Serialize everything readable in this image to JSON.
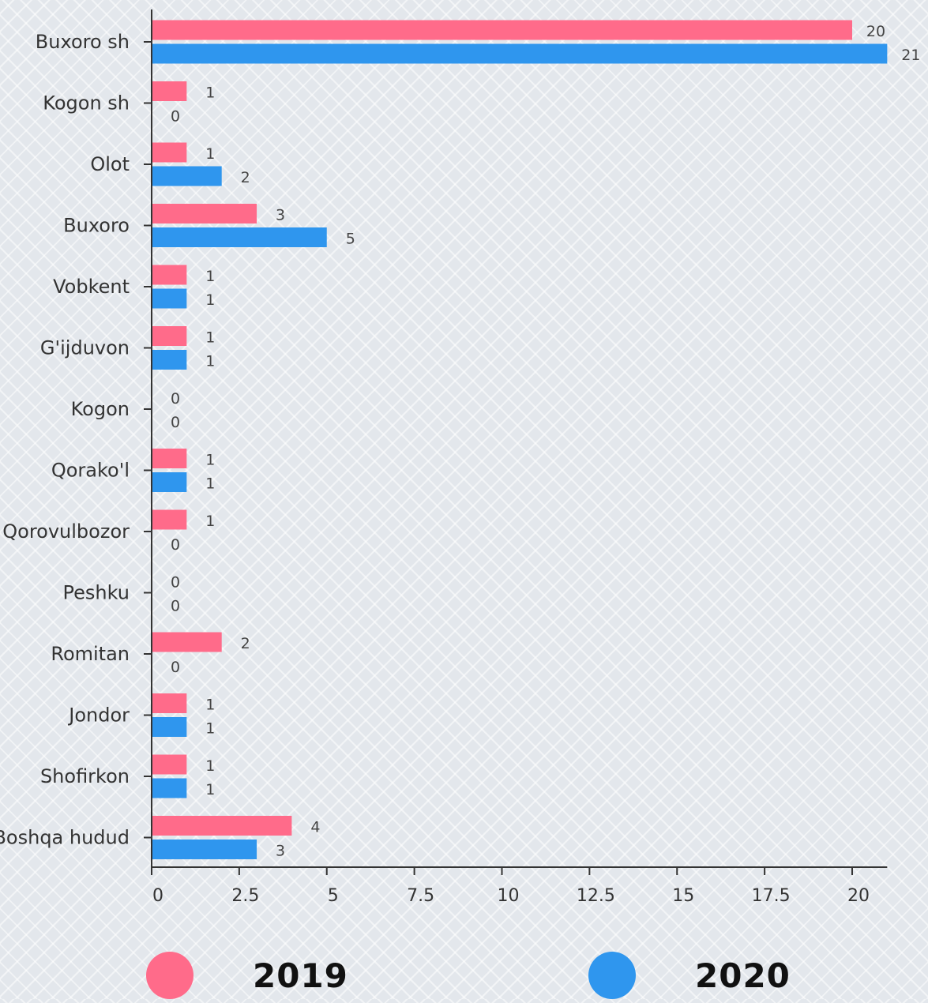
{
  "chart_data": {
    "type": "bar",
    "orientation": "horizontal",
    "categories": [
      "Buxoro sh",
      "Kogon sh",
      "Olot",
      "Buxoro",
      "Vobkent",
      "G'ijduvon",
      "Kogon",
      "Qorako'l",
      "Qorovulbozor",
      "Peshku",
      "Romitan",
      "Jondor",
      "Shofirkon",
      "Boshqa hudud"
    ],
    "series": [
      {
        "name": "2019",
        "color": "#ff6b8a",
        "values": [
          20,
          1,
          1,
          3,
          1,
          1,
          0,
          1,
          1,
          0,
          2,
          1,
          1,
          4
        ]
      },
      {
        "name": "2020",
        "color": "#2f96ee",
        "values": [
          21,
          0,
          2,
          5,
          1,
          1,
          0,
          1,
          0,
          0,
          0,
          1,
          1,
          3
        ]
      }
    ],
    "xlim": [
      0,
      21
    ],
    "xticks": [
      0,
      2.5,
      5,
      7.5,
      10,
      12.5,
      15,
      17.5,
      20
    ],
    "xtick_labels": [
      "0",
      "2.5",
      "5",
      "7.5",
      "10",
      "12.5",
      "15",
      "17.5",
      "20"
    ],
    "legend_placement": "bottom",
    "title": "",
    "xlabel": "",
    "ylabel": ""
  },
  "legend": {
    "items": [
      {
        "label": "2019",
        "color": "#ff6b8a"
      },
      {
        "label": "2020",
        "color": "#2f96ee"
      }
    ]
  }
}
